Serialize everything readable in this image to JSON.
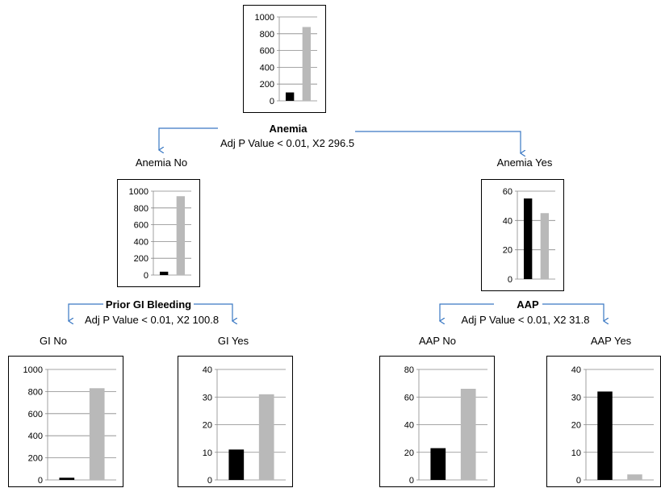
{
  "colors": {
    "split_line": "#3a78c3",
    "bar_dark": "#000000",
    "bar_light": "#b9b9b9",
    "grid": "#888888"
  },
  "root": {
    "split_name": "Anemia",
    "split_stats": "Adj P Value < 0.01, X2 296.5",
    "left_label": "Anemia No",
    "right_label": "Anemia Yes"
  },
  "left_node": {
    "split_name": "Prior GI Bleeding",
    "split_stats": "Adj P Value < 0.01, X2 100.8",
    "left_label": "GI No",
    "right_label": "GI Yes"
  },
  "right_node": {
    "split_name": "AAP",
    "split_stats": "Adj P Value < 0.01, X2 31.8",
    "left_label": "AAP No",
    "right_label": "AAP Yes"
  },
  "chart_data": [
    {
      "id": "root",
      "type": "bar",
      "ticks": [
        0,
        200,
        400,
        600,
        800,
        1000
      ],
      "ylim": [
        0,
        1000
      ],
      "values": [
        100,
        880
      ]
    },
    {
      "id": "anemia-no",
      "type": "bar",
      "ticks": [
        0,
        200,
        400,
        600,
        800,
        1000
      ],
      "ylim": [
        0,
        1000
      ],
      "values": [
        40,
        940
      ]
    },
    {
      "id": "anemia-yes",
      "type": "bar",
      "ticks": [
        0,
        20,
        40,
        60
      ],
      "ylim": [
        0,
        60
      ],
      "values": [
        55,
        45
      ]
    },
    {
      "id": "gi-no",
      "type": "bar",
      "ticks": [
        0,
        200,
        400,
        600,
        800,
        1000
      ],
      "ylim": [
        0,
        1000
      ],
      "values": [
        20,
        830
      ]
    },
    {
      "id": "gi-yes",
      "type": "bar",
      "ticks": [
        0,
        10,
        20,
        30,
        40
      ],
      "ylim": [
        0,
        40
      ],
      "values": [
        11,
        31
      ]
    },
    {
      "id": "aap-no",
      "type": "bar",
      "ticks": [
        0,
        20,
        40,
        60,
        80
      ],
      "ylim": [
        0,
        80
      ],
      "values": [
        23,
        66
      ]
    },
    {
      "id": "aap-yes",
      "type": "bar",
      "ticks": [
        0,
        10,
        20,
        30,
        40
      ],
      "ylim": [
        0,
        40
      ],
      "values": [
        32,
        2
      ]
    }
  ]
}
